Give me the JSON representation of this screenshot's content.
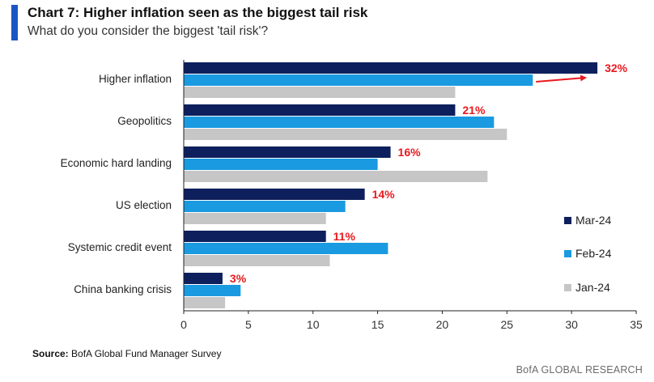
{
  "header": {
    "title": "Chart 7: Higher inflation seen as the biggest tail risk",
    "subtitle": "What do you consider the biggest 'tail risk'?"
  },
  "footer": {
    "source_label": "Source:",
    "source_text": "BofA Global Fund Manager Survey",
    "brand": "BofA GLOBAL RESEARCH"
  },
  "colors": {
    "accent": "#1a55c4",
    "mar24": "#0d1f5c",
    "feb24": "#1a9ae0",
    "jan24": "#c6c6c6",
    "highlight": "#e8191e",
    "axis": "#222222"
  },
  "chart_data": {
    "type": "bar",
    "orientation": "horizontal",
    "title": "Chart 7: Higher inflation seen as the biggest tail risk",
    "subtitle": "What do you consider the biggest 'tail risk'?",
    "categories": [
      "Higher inflation",
      "Geopolitics",
      "Economic hard landing",
      "US election",
      "Systemic credit event",
      "China banking crisis"
    ],
    "series": [
      {
        "name": "Mar-24",
        "values": [
          32,
          21,
          16,
          14,
          11,
          3
        ]
      },
      {
        "name": "Feb-24",
        "values": [
          27,
          24,
          15,
          12.5,
          15.8,
          4.4
        ]
      },
      {
        "name": "Jan-24",
        "values": [
          21,
          25,
          23.5,
          11,
          11.3,
          3.2
        ]
      }
    ],
    "value_labels": [
      "32%",
      "21%",
      "16%",
      "14%",
      "11%",
      "3%"
    ],
    "xlim": [
      0,
      35
    ],
    "xticks": [
      0,
      5,
      10,
      15,
      20,
      25,
      30,
      35
    ],
    "tick_labels": [
      "0",
      "5",
      "10",
      "15",
      "20",
      "25",
      "30",
      "35"
    ],
    "xlabel": "",
    "ylabel": "",
    "legend_position": "right",
    "annotation": "Red arrow from Feb-24 to Mar-24 bar on Higher inflation"
  }
}
